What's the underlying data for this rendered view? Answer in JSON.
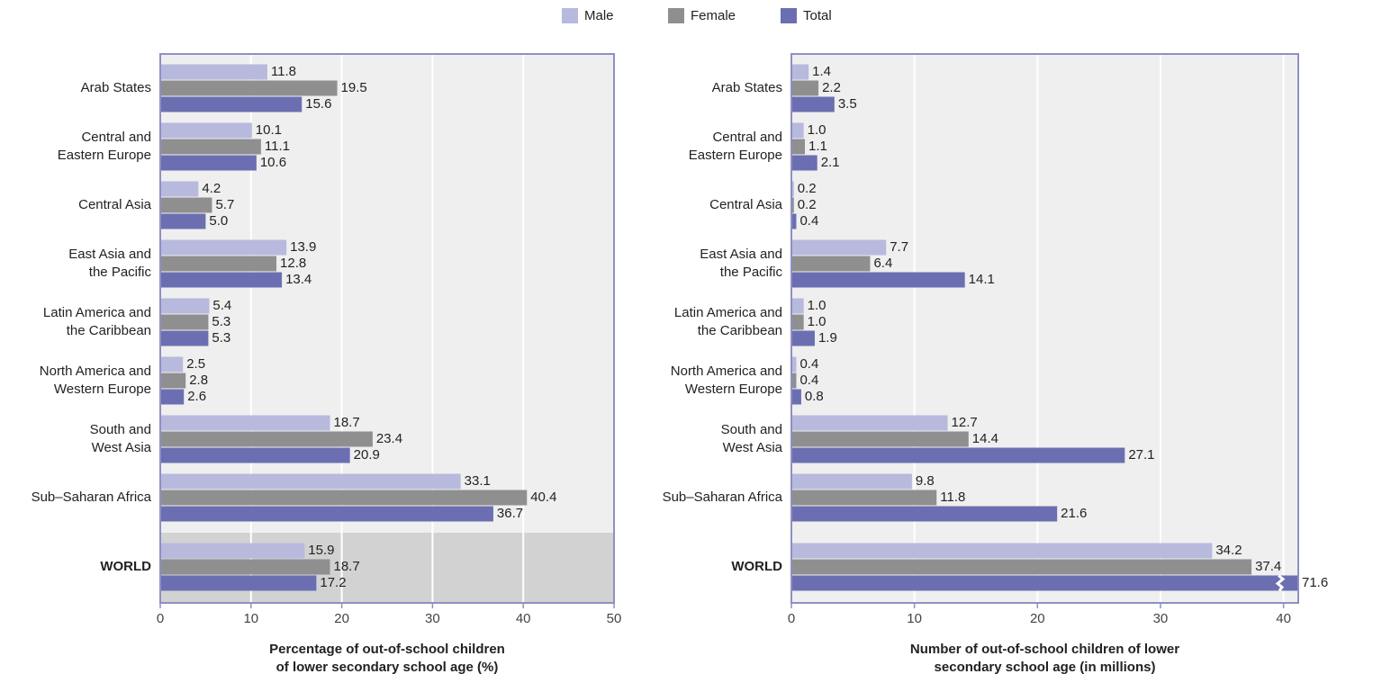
{
  "chart_data": [
    {
      "type": "bar",
      "orientation": "horizontal",
      "x_label": "Percentage of out-of-school children\nof lower secondary school age (%)",
      "categories": [
        "Arab States",
        "Central and\nEastern Europe",
        "Central Asia",
        "East Asia and\nthe Pacific",
        "Latin America and\nthe Caribbean",
        "North America and\nWestern Europe",
        "South and\nWest Asia",
        "Sub–Saharan Africa",
        "WORLD"
      ],
      "series": [
        {
          "name": "Male",
          "color": "#b7b9dd",
          "values": [
            11.8,
            10.1,
            4.2,
            13.9,
            5.4,
            2.5,
            18.7,
            33.1,
            15.9
          ],
          "value_labels": [
            "11.8",
            "10.1",
            "4.2",
            "13.9",
            "5.4",
            "2.5",
            "18.7",
            "33.1",
            "15.9"
          ]
        },
        {
          "name": "Female",
          "color": "#8f8f8f",
          "values": [
            19.5,
            11.1,
            5.7,
            12.8,
            5.3,
            2.8,
            23.4,
            40.4,
            18.7
          ],
          "value_labels": [
            "19.5",
            "11.1",
            "5.7",
            "12.8",
            "5.3",
            "2.8",
            "23.4",
            "40.4",
            "18.7"
          ]
        },
        {
          "name": "Total",
          "color": "#6b6fb1",
          "values": [
            15.6,
            10.6,
            5.0,
            13.4,
            5.3,
            2.6,
            20.9,
            36.7,
            17.2
          ],
          "value_labels": [
            "15.6",
            "10.6",
            "5.0",
            "13.4",
            "5.3",
            "2.6",
            "20.9",
            "36.7",
            "17.2"
          ]
        }
      ],
      "xlim": [
        0,
        50
      ],
      "xticks": [
        0,
        10,
        20,
        30,
        40,
        50
      ],
      "grid": true,
      "highlight_last": true
    },
    {
      "type": "bar",
      "orientation": "horizontal",
      "x_label": "Number of out-of-school children of lower\nsecondary school age (in millions)",
      "categories": [
        "Arab States",
        "Central and\nEastern Europe",
        "Central Asia",
        "East Asia and\nthe Pacific",
        "Latin America and\nthe Caribbean",
        "North America and\nWestern Europe",
        "South and\nWest Asia",
        "Sub–Saharan Africa",
        "WORLD"
      ],
      "series": [
        {
          "color": "#b7b9dd",
          "values": [
            1.4,
            1.0,
            0.2,
            7.7,
            1.0,
            0.4,
            12.7,
            9.8,
            34.2
          ],
          "value_labels": [
            "1.4",
            "1.0",
            "0.2",
            "7.7",
            "1.0",
            "0.4",
            "12.7",
            "9.8",
            "34.2"
          ]
        },
        {
          "color": "#8f8f8f",
          "values": [
            2.2,
            1.1,
            0.2,
            6.4,
            1.0,
            0.4,
            14.4,
            11.8,
            37.4
          ],
          "value_labels": [
            "2.2",
            "1.1",
            "0.2",
            "6.4",
            "1.0",
            "0.4",
            "14.4",
            "11.8",
            "37.4"
          ]
        },
        {
          "color": "#6b6fb1",
          "values": [
            3.5,
            2.1,
            0.4,
            14.1,
            1.9,
            0.8,
            27.1,
            21.6,
            71.6
          ],
          "value_labels": [
            "3.5",
            "2.1",
            "0.4",
            "14.1",
            "1.9",
            "0.8",
            "27.1",
            "21.6",
            "71.6"
          ]
        }
      ],
      "xlim": [
        0,
        41.2
      ],
      "xticks": [
        0,
        10,
        20,
        30,
        40
      ],
      "grid": true,
      "highlight_last": false
    }
  ]
}
